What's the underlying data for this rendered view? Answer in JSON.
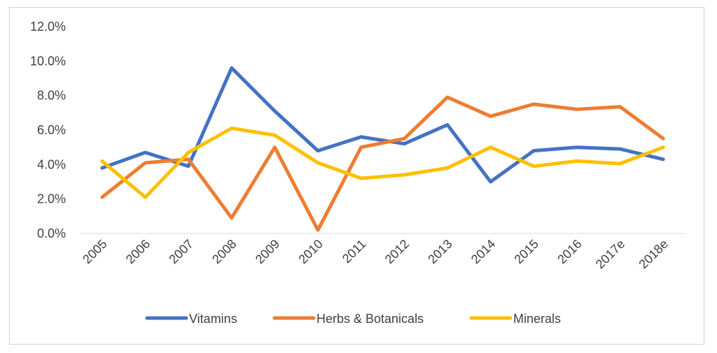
{
  "chart_data": {
    "type": "line",
    "title": "",
    "xlabel": "",
    "ylabel": "",
    "categories": [
      "2005",
      "2006",
      "2007",
      "2008",
      "2009",
      "2010",
      "2011",
      "2012",
      "2013",
      "2014",
      "2015",
      "2016",
      "2017e",
      "2018e"
    ],
    "ylim": [
      0,
      12
    ],
    "yticks": [
      "0.0%",
      "2.0%",
      "4.0%",
      "6.0%",
      "8.0%",
      "10.0%",
      "12.0%"
    ],
    "grid": false,
    "legend_position": "bottom",
    "series": [
      {
        "name": "Vitamins",
        "color": "#4472C4",
        "values": [
          3.8,
          4.7,
          3.9,
          9.6,
          7.1,
          4.8,
          5.6,
          5.2,
          6.3,
          3.0,
          4.8,
          5.0,
          4.9,
          4.3
        ]
      },
      {
        "name": "Herbs & Botanicals",
        "color": "#ED7D31",
        "values": [
          2.1,
          4.1,
          4.3,
          0.9,
          5.0,
          0.2,
          5.0,
          5.5,
          7.9,
          6.8,
          7.5,
          7.2,
          7.35,
          5.5
        ]
      },
      {
        "name": "Minerals",
        "color": "#FFC000",
        "values": [
          4.2,
          2.1,
          4.7,
          6.1,
          5.7,
          4.1,
          3.2,
          3.4,
          3.8,
          5.0,
          3.9,
          4.2,
          4.05,
          5.0
        ]
      }
    ]
  }
}
